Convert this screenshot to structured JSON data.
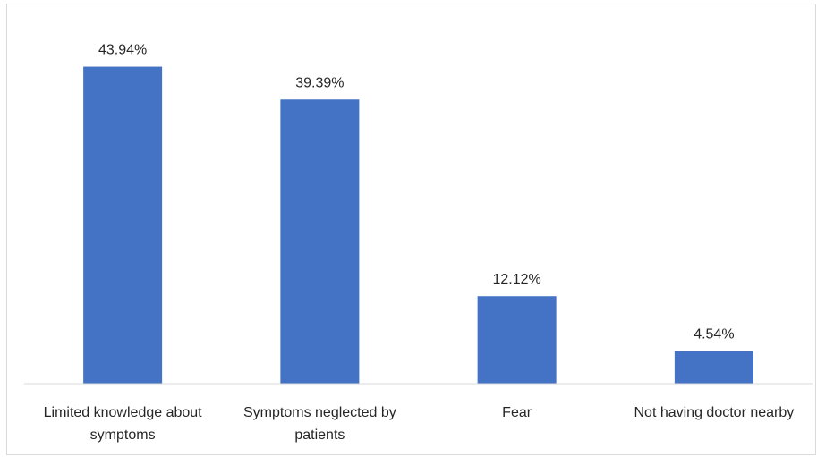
{
  "chart_data": {
    "type": "bar",
    "categories": [
      [
        "Limited knowledge about",
        "symptoms"
      ],
      [
        "Symptoms neglected by",
        "patients"
      ],
      [
        "Fear"
      ],
      [
        "Not having doctor nearby"
      ]
    ],
    "values": [
      43.94,
      39.39,
      12.12,
      4.54
    ],
    "value_labels": [
      "43.94%",
      "39.39%",
      "12.12%",
      "4.54%"
    ],
    "title": "",
    "xlabel": "",
    "ylabel": "",
    "ylim": [
      0,
      45
    ],
    "grid": false,
    "legend": "none",
    "bar_color": "#4472C4"
  }
}
